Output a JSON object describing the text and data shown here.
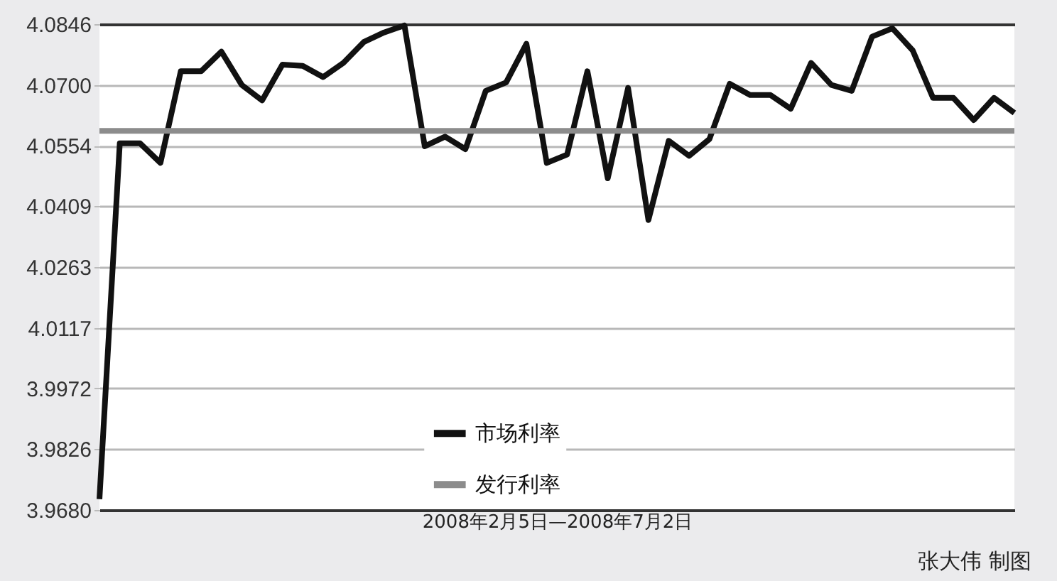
{
  "chart_data": {
    "type": "line",
    "xlabel": "2008年2月5日—2008年7月2日",
    "annotations": [
      "张大伟 制图"
    ],
    "categories": [
      null,
      null,
      null,
      null,
      null,
      null,
      null,
      null,
      null,
      null,
      null,
      null,
      null,
      null,
      null,
      null,
      null,
      null,
      null,
      null,
      null,
      null,
      null,
      null,
      null,
      null,
      null,
      null,
      null,
      null,
      null,
      null,
      null,
      null,
      null,
      null,
      null,
      null,
      null,
      null,
      null,
      null,
      null,
      null,
      null,
      null
    ],
    "series": [
      {
        "name": "市场利率",
        "color": "#111111",
        "values": [
          3.9706,
          4.056,
          4.056,
          4.0513,
          4.0733,
          4.0733,
          4.078,
          4.07,
          4.0663,
          4.0749,
          4.0746,
          4.0719,
          4.0753,
          4.0803,
          4.0826,
          4.0843,
          4.0553,
          4.0576,
          4.0546,
          4.0686,
          4.0706,
          4.0799,
          4.0513,
          4.0533,
          4.0733,
          4.0476,
          4.0693,
          4.0376,
          4.0566,
          4.053,
          4.057,
          4.0703,
          4.0676,
          4.0676,
          4.0643,
          4.0753,
          4.07,
          4.0686,
          4.0816,
          4.0836,
          4.0783,
          4.0669,
          4.0669,
          4.0616,
          4.0669,
          4.0633
        ]
      },
      {
        "name": "发行利率",
        "color": "#8c8c8c",
        "values": [
          4.059,
          4.059,
          4.059,
          4.059,
          4.059,
          4.059,
          4.059,
          4.059,
          4.059,
          4.059,
          4.059,
          4.059,
          4.059,
          4.059,
          4.059,
          4.059,
          4.059,
          4.059,
          4.059,
          4.059,
          4.059,
          4.059,
          4.059,
          4.059,
          4.059,
          4.059,
          4.059,
          4.059,
          4.059,
          4.059,
          4.059,
          4.059,
          4.059,
          4.059,
          4.059,
          4.059,
          4.059,
          4.059,
          4.059,
          4.059,
          4.059,
          4.059,
          4.059,
          4.059,
          4.059,
          4.059
        ]
      }
    ],
    "ylim": [
      3.968,
      4.0846
    ],
    "yticks": [
      {
        "value": 3.968,
        "label": "3.9680"
      },
      3.9826,
      3.9972,
      4.0117,
      4.0263,
      4.0409,
      4.0554,
      {
        "value": 4.07,
        "label": "4.0700"
      },
      4.0846
    ],
    "grid": "y",
    "legend": "bottom",
    "tick_labels": "y",
    "marker": "none",
    "line_style": "solid"
  }
}
